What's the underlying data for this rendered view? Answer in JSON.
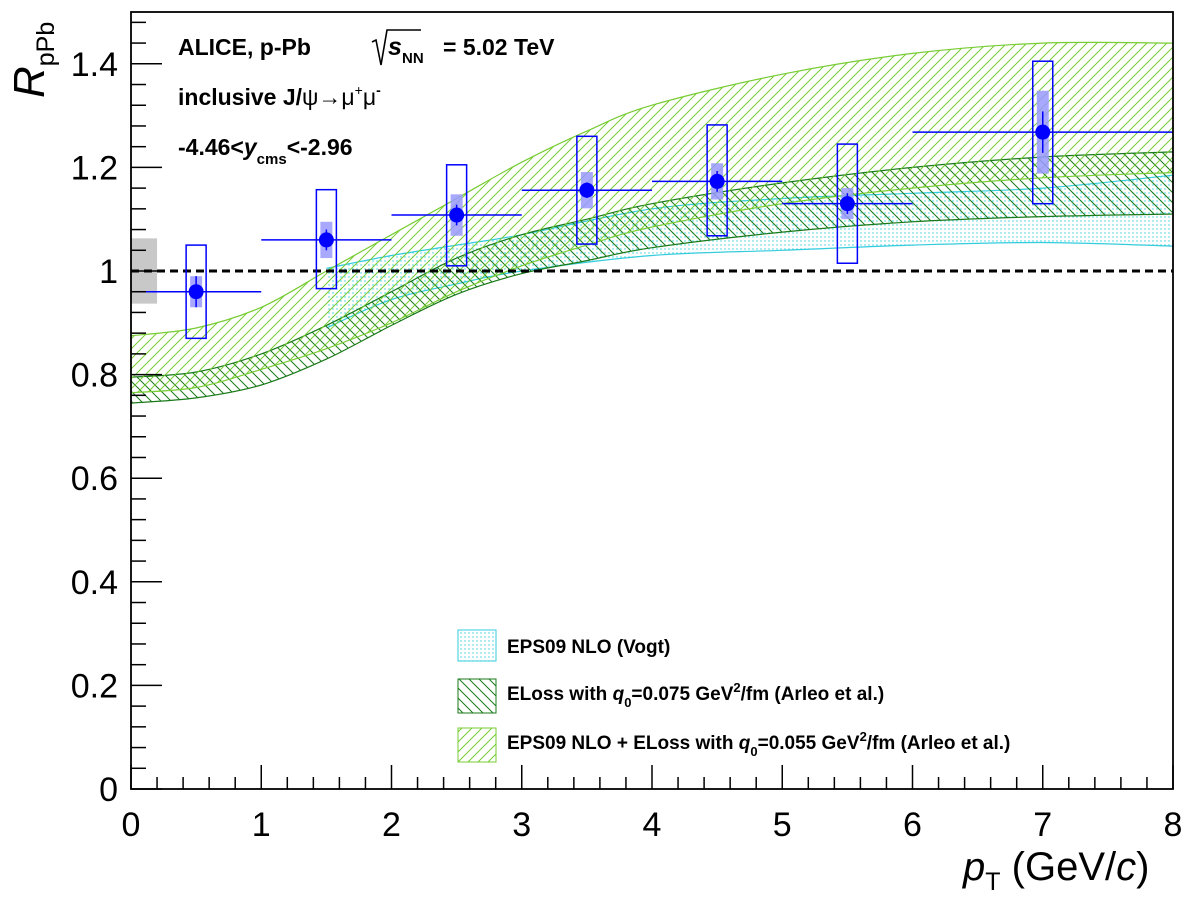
{
  "chart_data": {
    "type": "scatter",
    "title": "",
    "xlabel": "p_T (GeV/c)",
    "ylabel": "R_pPb",
    "xlim": [
      0,
      8
    ],
    "ylim": [
      0,
      1.5
    ],
    "x_ticks": [
      "0",
      "1",
      "2",
      "3",
      "4",
      "5",
      "6",
      "7",
      "8"
    ],
    "y_ticks": [
      "0",
      "0.2",
      "0.4",
      "0.6",
      "0.8",
      "1",
      "1.2",
      "1.4"
    ],
    "x_tick_values": [
      0,
      1,
      2,
      3,
      4,
      5,
      6,
      7,
      8
    ],
    "y_tick_values": [
      0,
      0.2,
      0.4,
      0.6,
      0.8,
      1.0,
      1.2,
      1.4
    ],
    "reference_line": 1.0,
    "global_uncertainty": {
      "x": [
        0,
        0.2
      ],
      "y": [
        0.937,
        1.063
      ],
      "color": "#c8c8c8"
    },
    "annotations": {
      "line1": "ALICE, p-Pb",
      "line1_energy_prefix": "s",
      "line1_energy_sub": "NN",
      "line1_energy_value": "= 5.02 TeV",
      "line2_prefix": "inclusive J/",
      "line2_psi": "ψ→μ",
      "line2_plus": "+",
      "line2_mu": "μ",
      "line2_minus": "-",
      "line3_prefix": "-4.46<",
      "line3_var": "y",
      "line3_sub": "cms",
      "line3_suffix": "<-2.96"
    },
    "series": [
      {
        "name": "ALICE data",
        "color": "#0000ff",
        "points": [
          {
            "x": 0.5,
            "y": 0.96,
            "xerr": 0.5,
            "stat": 0.03,
            "syst_corr": 0.03,
            "syst_uncorr": [
              0.87,
              1.05
            ]
          },
          {
            "x": 1.5,
            "y": 1.06,
            "xerr": 0.5,
            "stat": 0.02,
            "syst_corr": 0.035,
            "syst_uncorr": [
              0.966,
              1.157
            ]
          },
          {
            "x": 2.5,
            "y": 1.108,
            "xerr": 0.5,
            "stat": 0.02,
            "syst_corr": 0.04,
            "syst_uncorr": [
              1.01,
              1.205
            ]
          },
          {
            "x": 3.5,
            "y": 1.156,
            "xerr": 0.5,
            "stat": 0.015,
            "syst_corr": 0.035,
            "syst_uncorr": [
              1.052,
              1.26
            ]
          },
          {
            "x": 4.5,
            "y": 1.173,
            "xerr": 0.5,
            "stat": 0.02,
            "syst_corr": 0.035,
            "syst_uncorr": [
              1.068,
              1.282
            ]
          },
          {
            "x": 5.5,
            "y": 1.13,
            "xerr": 0.5,
            "stat": 0.02,
            "syst_corr": 0.03,
            "syst_uncorr": [
              1.015,
              1.245
            ]
          },
          {
            "x": 7.0,
            "y": 1.268,
            "xerr": 1.0,
            "stat": 0.04,
            "syst_corr": 0.08,
            "syst_uncorr": [
              1.13,
              1.405
            ]
          }
        ]
      }
    ],
    "bands": [
      {
        "name": "EPS09 NLO (Vogt)",
        "color": "#33ccdd",
        "pattern": "dots",
        "x": [
          1.5,
          2,
          2.5,
          3,
          4,
          5,
          6,
          7,
          8
        ],
        "lower": [
          0.89,
          0.945,
          0.975,
          1.0,
          1.03,
          1.04,
          1.05,
          1.055,
          1.048
        ],
        "upper": [
          1.005,
          1.03,
          1.05,
          1.07,
          1.12,
          1.14,
          1.15,
          1.16,
          1.185
        ]
      },
      {
        "name": "ELoss with q_0=0.075 GeV^2/fm (Arleo et al.)",
        "color": "#1a7a1a",
        "pattern": "hatch-back",
        "x": [
          0,
          0.5,
          1,
          1.5,
          2,
          2.5,
          3,
          3.5,
          4,
          5,
          6,
          7,
          8
        ],
        "lower": [
          0.745,
          0.755,
          0.78,
          0.83,
          0.895,
          0.955,
          0.995,
          1.02,
          1.045,
          1.075,
          1.095,
          1.105,
          1.11
        ],
        "upper": [
          0.795,
          0.805,
          0.84,
          0.895,
          0.96,
          1.025,
          1.07,
          1.1,
          1.13,
          1.17,
          1.2,
          1.22,
          1.23
        ]
      },
      {
        "name": "EPS09 NLO + ELoss with q_0=0.055 GeV^2/fm (Arleo et al.)",
        "color": "#77cc33",
        "pattern": "hatch-fwd",
        "x": [
          0,
          0.5,
          1,
          1.5,
          2,
          2.5,
          3,
          3.5,
          4,
          5,
          6,
          7,
          8
        ],
        "lower": [
          0.765,
          0.775,
          0.81,
          0.85,
          0.9,
          0.96,
          1.01,
          1.05,
          1.085,
          1.13,
          1.16,
          1.18,
          1.19
        ],
        "upper": [
          0.875,
          0.89,
          0.93,
          1.0,
          1.07,
          1.14,
          1.21,
          1.27,
          1.32,
          1.38,
          1.42,
          1.44,
          1.44
        ]
      }
    ],
    "legend": {
      "placement": "bottom-right",
      "entries": [
        {
          "label": "EPS09 NLO (Vogt)"
        },
        {
          "label_prefix": "ELoss with ",
          "label_var": "q",
          "label_sub": "0",
          "label_mid": "=0.075 GeV",
          "label_sup": "2",
          "label_suffix": "/fm (Arleo et al.)"
        },
        {
          "label_prefix": "EPS09 NLO + ELoss with ",
          "label_var": "q",
          "label_sub": "0",
          "label_mid": "=0.055 GeV",
          "label_sup": "2",
          "label_suffix": "/fm (Arleo et al.)"
        }
      ]
    },
    "axis_labels": {
      "y_main": "R",
      "y_sub": "pPb",
      "x_main": "p",
      "x_sub": "T",
      "x_unit_prefix": " (GeV/",
      "x_unit_var": "c",
      "x_unit_suffix": ")"
    }
  }
}
